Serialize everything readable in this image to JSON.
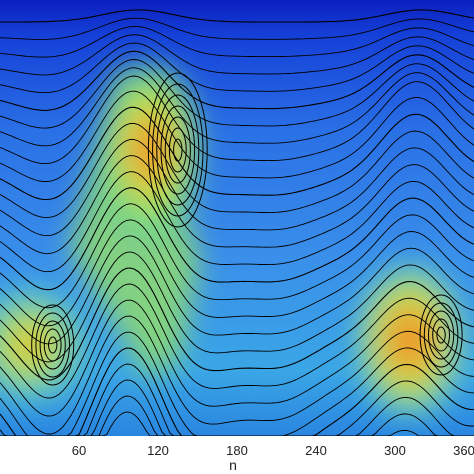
{
  "chart_data": {
    "type": "heatmap",
    "title": "",
    "xlabel": "n",
    "ylabel": "",
    "xlim": [
      0,
      360
    ],
    "x_ticks": [
      60,
      120,
      180,
      240,
      300,
      360
    ],
    "x_tick_labels": [
      "60",
      "120",
      "180",
      "240",
      "300",
      "360"
    ],
    "colormap": [
      "#0b1fbf",
      "#1f5ee8",
      "#3a98ea",
      "#4fc3cc",
      "#6fd98a",
      "#b8e050",
      "#f0b030",
      "#e86a20"
    ],
    "contour_line_color": "#000000",
    "grid": false,
    "legend": "none",
    "features": [
      {
        "x": 105,
        "kind": "cusp",
        "value": "high"
      },
      {
        "x": 135,
        "kind": "peak",
        "value": "max"
      },
      {
        "x": 40,
        "kind": "peak",
        "value": "medium-high"
      },
      {
        "x": 215,
        "kind": "ridge",
        "value": "low"
      },
      {
        "x": 335,
        "kind": "peak",
        "value": "high"
      },
      {
        "x": 320,
        "kind": "cusp",
        "value": "high"
      }
    ]
  }
}
